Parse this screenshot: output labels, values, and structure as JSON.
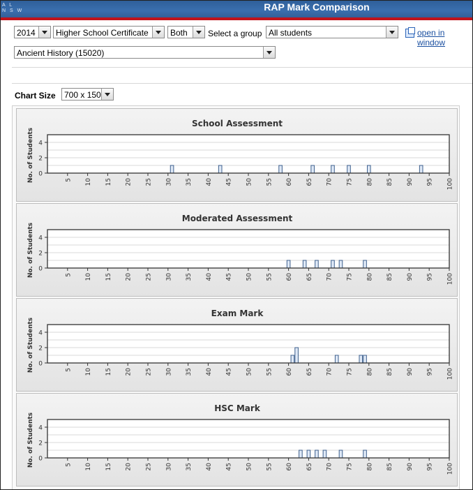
{
  "window": {
    "title": "RAP Mark Comparison",
    "logo_lines": [
      "A L",
      "N S W"
    ]
  },
  "filters": {
    "year": "2014",
    "course": "Higher School Certificate",
    "gender": "Both",
    "group_label": "Select a group",
    "group": "All students",
    "open_link": "open in window",
    "subject": "Ancient History (15020)"
  },
  "chart_size": {
    "label": "Chart Size",
    "value": "700 x 150"
  },
  "colors": {
    "bar_fill": "#dfe9f7",
    "bar_stroke": "#3d5f8c",
    "title_bar": "#3468a6",
    "accent_red": "#c0141c"
  },
  "chart_data": [
    {
      "type": "bar",
      "title": "School Assessment",
      "ylabel": "No. of Students",
      "xlim": [
        0,
        100
      ],
      "ylim": [
        0,
        5
      ],
      "yticks": [
        0,
        2,
        4
      ],
      "xticks": [
        5,
        10,
        15,
        20,
        25,
        30,
        35,
        40,
        45,
        50,
        55,
        60,
        65,
        70,
        75,
        80,
        85,
        90,
        95,
        100
      ],
      "x": [
        31,
        43,
        58,
        66,
        71,
        75,
        80,
        93
      ],
      "values": [
        1,
        1,
        1,
        1,
        1,
        1,
        1,
        1
      ]
    },
    {
      "type": "bar",
      "title": "Moderated Assessment",
      "ylabel": "No. of Students",
      "xlim": [
        0,
        100
      ],
      "ylim": [
        0,
        5
      ],
      "yticks": [
        0,
        2,
        4
      ],
      "xticks": [
        5,
        10,
        15,
        20,
        25,
        30,
        35,
        40,
        45,
        50,
        55,
        60,
        65,
        70,
        75,
        80,
        85,
        90,
        95,
        100
      ],
      "x": [
        60,
        64,
        67,
        71,
        73,
        79
      ],
      "values": [
        1,
        1,
        1,
        1,
        1,
        1
      ]
    },
    {
      "type": "bar",
      "title": "Exam Mark",
      "ylabel": "No. of Students",
      "xlim": [
        0,
        100
      ],
      "ylim": [
        0,
        5
      ],
      "yticks": [
        0,
        2,
        4
      ],
      "xticks": [
        5,
        10,
        15,
        20,
        25,
        30,
        35,
        40,
        45,
        50,
        55,
        60,
        65,
        70,
        75,
        80,
        85,
        90,
        95,
        100
      ],
      "x": [
        61,
        62,
        72,
        78,
        79
      ],
      "values": [
        1,
        2,
        1,
        1,
        1
      ]
    },
    {
      "type": "bar",
      "title": "HSC Mark",
      "ylabel": "No. of Students",
      "xlim": [
        0,
        100
      ],
      "ylim": [
        0,
        5
      ],
      "yticks": [
        0,
        2,
        4
      ],
      "xticks": [
        5,
        10,
        15,
        20,
        25,
        30,
        35,
        40,
        45,
        50,
        55,
        60,
        65,
        70,
        75,
        80,
        85,
        90,
        95,
        100
      ],
      "x": [
        63,
        65,
        67,
        69,
        73,
        79
      ],
      "values": [
        1,
        1,
        1,
        1,
        1,
        1
      ]
    }
  ]
}
